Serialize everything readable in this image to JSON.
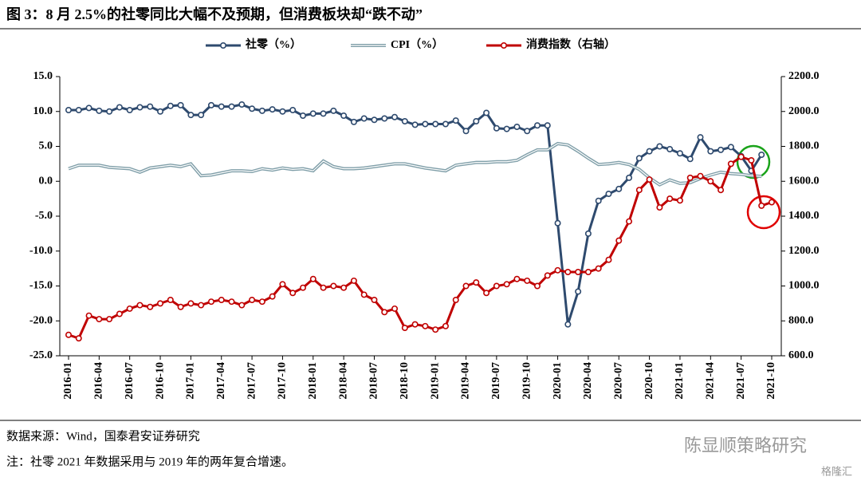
{
  "chart_data": {
    "type": "line",
    "title": "图 3：8 月 2.5%的社零同比大幅不及预期，但消费板块却“跌不动”",
    "source": "数据来源：Wind，国泰君安证券研究",
    "note": "注：社零 2021 年数据采用与 2019 年的两年复合增速。",
    "watermarks": [
      "陈显顺策略研究",
      "格隆汇"
    ],
    "categories": [
      "2016-01",
      null,
      null,
      "2016-04",
      null,
      null,
      "2016-07",
      null,
      null,
      "2016-10",
      null,
      null,
      "2017-01",
      null,
      null,
      "2017-04",
      null,
      null,
      "2017-07",
      null,
      null,
      "2017-10",
      null,
      null,
      "2018-01",
      null,
      null,
      "2018-04",
      null,
      null,
      "2018-07",
      null,
      null,
      "2018-10",
      null,
      null,
      "2019-01",
      null,
      null,
      "2019-04",
      null,
      null,
      "2019-07",
      null,
      null,
      "2019-10",
      null,
      null,
      "2020-01",
      null,
      null,
      "2020-04",
      null,
      null,
      "2020-07",
      null,
      null,
      "2020-10",
      null,
      null,
      "2021-01",
      null,
      null,
      "2021-04",
      null,
      null,
      "2021-07",
      null,
      null,
      "2021-10"
    ],
    "series": [
      {
        "name": "社零（%）",
        "color": "#2e4a6e",
        "markers": true,
        "values": [
          10.2,
          10.2,
          10.5,
          10.1,
          10.0,
          10.6,
          10.2,
          10.6,
          10.7,
          10.0,
          10.8,
          10.9,
          9.5,
          9.5,
          10.9,
          10.7,
          10.7,
          11.0,
          10.4,
          10.1,
          10.3,
          10.0,
          10.2,
          9.4,
          9.7,
          9.7,
          10.1,
          9.4,
          8.5,
          9.0,
          8.8,
          9.0,
          9.2,
          8.6,
          8.1,
          8.2,
          8.2,
          8.2,
          8.7,
          7.2,
          8.6,
          9.8,
          7.6,
          7.5,
          7.8,
          7.2,
          8.0,
          8.0,
          -6.0,
          -20.5,
          -15.8,
          -7.5,
          -2.8,
          -1.8,
          -1.1,
          0.5,
          3.3,
          4.3,
          5.0,
          4.6,
          4.0,
          3.2,
          6.3,
          4.3,
          4.5,
          4.9,
          3.6,
          1.5,
          3.8,
          null
        ]
      },
      {
        "name": "CPI（%）",
        "color": "#7f9ea8",
        "markers": false,
        "values": [
          1.8,
          2.3,
          2.3,
          2.3,
          2.0,
          1.9,
          1.8,
          1.3,
          1.9,
          2.1,
          2.3,
          2.1,
          2.5,
          0.8,
          0.9,
          1.2,
          1.5,
          1.5,
          1.4,
          1.8,
          1.6,
          1.9,
          1.7,
          1.8,
          1.5,
          2.9,
          2.1,
          1.8,
          1.8,
          1.9,
          2.1,
          2.3,
          2.5,
          2.5,
          2.2,
          1.9,
          1.7,
          1.5,
          2.3,
          2.5,
          2.7,
          2.7,
          2.8,
          2.8,
          3.0,
          3.8,
          4.5,
          4.5,
          5.4,
          5.2,
          4.3,
          3.3,
          2.4,
          2.5,
          2.7,
          2.4,
          1.7,
          0.5,
          -0.5,
          0.2,
          -0.3,
          -0.2,
          0.4,
          0.9,
          1.3,
          1.1,
          1.0,
          0.8,
          0.7,
          null
        ]
      },
      {
        "name": "消费指数（右轴）",
        "color": "#c00000",
        "markers": true,
        "axis": "y2",
        "values": [
          720,
          700,
          830,
          810,
          810,
          840,
          870,
          890,
          880,
          900,
          920,
          880,
          900,
          890,
          910,
          920,
          910,
          890,
          920,
          910,
          940,
          1010,
          960,
          990,
          1040,
          990,
          1000,
          990,
          1030,
          950,
          920,
          850,
          870,
          760,
          780,
          770,
          750,
          770,
          920,
          1000,
          1020,
          960,
          1000,
          1010,
          1040,
          1030,
          1000,
          1060,
          1090,
          1080,
          1080,
          1080,
          1100,
          1150,
          1260,
          1370,
          1550,
          1610,
          1450,
          1500,
          1490,
          1620,
          1630,
          1600,
          1550,
          1700,
          1740,
          1720,
          1460,
          1480
        ]
      }
    ],
    "ylim": [
      -25,
      15
    ],
    "yticks": [
      {
        "value": -25,
        "label": "-25.0"
      },
      {
        "value": -20,
        "label": "-20.0"
      },
      {
        "value": -15,
        "label": "-15.0"
      },
      {
        "value": -10,
        "label": "-10.0"
      },
      {
        "value": -5,
        "label": "-5.0"
      },
      {
        "value": 0,
        "label": "0.0"
      },
      {
        "value": 5,
        "label": "5.0"
      },
      {
        "value": 10,
        "label": "10.0"
      },
      {
        "value": 15,
        "label": "15.0"
      }
    ],
    "y2lim": [
      600,
      2200
    ],
    "y2ticks": [
      {
        "value": 600,
        "label": "600.0"
      },
      {
        "value": 800,
        "label": "800.0"
      },
      {
        "value": 1000,
        "label": "1000.0"
      },
      {
        "value": 1200,
        "label": "1200.0"
      },
      {
        "value": 1400,
        "label": "1400.0"
      },
      {
        "value": 1600,
        "label": "1600.0"
      },
      {
        "value": 1800,
        "label": "1800.0"
      },
      {
        "value": 2000,
        "label": "2000.0"
      },
      {
        "value": 2200,
        "label": "2200.0"
      }
    ],
    "grid": false,
    "legend": "top"
  }
}
